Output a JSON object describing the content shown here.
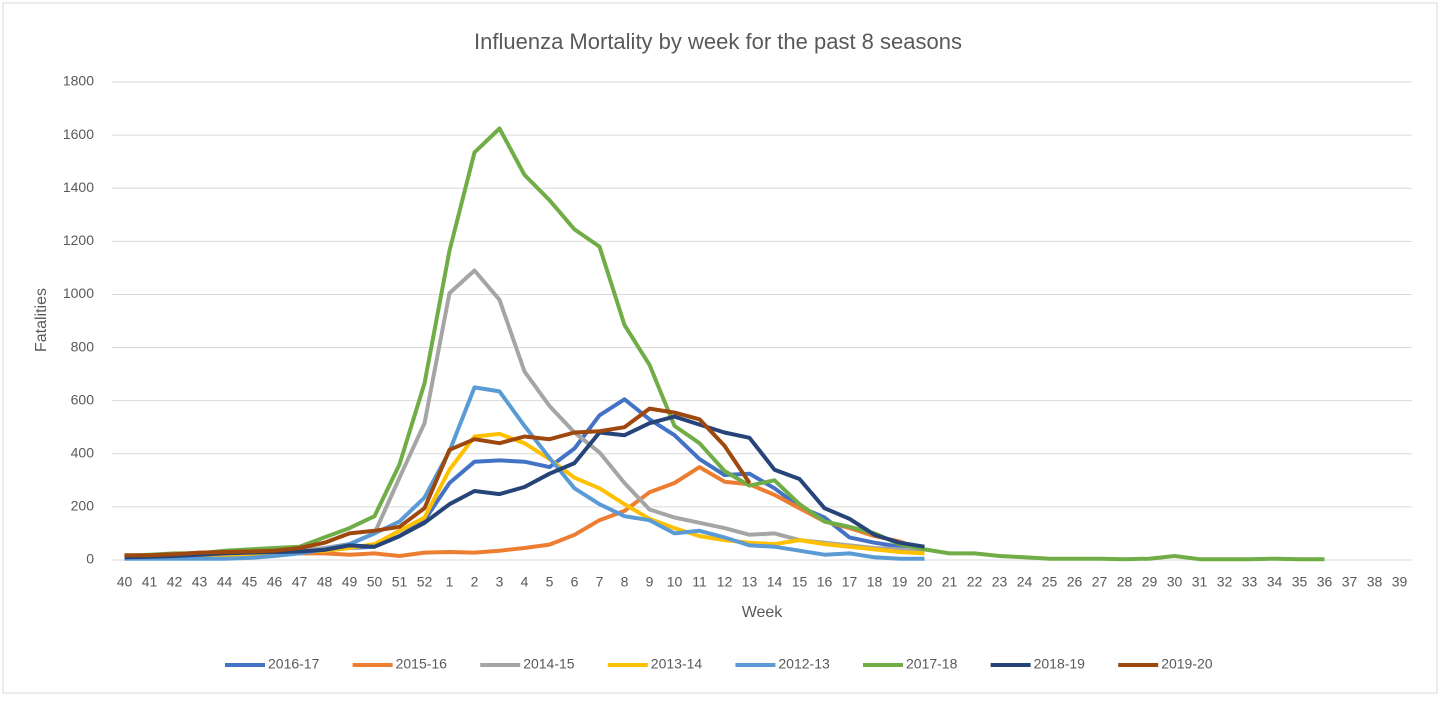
{
  "chart_data": {
    "type": "line",
    "title": "Influenza Mortality by week for the past 8 seasons",
    "x_label": "Week",
    "y_label": "Fatalities",
    "categories": [
      "40",
      "41",
      "42",
      "43",
      "44",
      "45",
      "46",
      "47",
      "48",
      "49",
      "50",
      "51",
      "52",
      "1",
      "2",
      "3",
      "4",
      "5",
      "6",
      "7",
      "8",
      "9",
      "10",
      "11",
      "12",
      "13",
      "14",
      "15",
      "16",
      "17",
      "18",
      "19",
      "20",
      "21",
      "22",
      "23",
      "24",
      "25",
      "26",
      "27",
      "28",
      "29",
      "30",
      "31",
      "32",
      "33",
      "34",
      "35",
      "36",
      "37",
      "38",
      "39"
    ],
    "ylim": [
      0,
      1800
    ],
    "yticks": [
      0,
      200,
      400,
      600,
      800,
      1000,
      1200,
      1400,
      1600,
      1800
    ],
    "grid": true,
    "legend": "bottom",
    "series": [
      {
        "name": "2016-17",
        "color": "#4472c4",
        "values": [
          10,
          12,
          15,
          18,
          20,
          22,
          25,
          30,
          35,
          45,
          50,
          90,
          150,
          290,
          370,
          375,
          370,
          350,
          420,
          545,
          605,
          530,
          470,
          380,
          320,
          325,
          270,
          200,
          160,
          85,
          65,
          50,
          40,
          null,
          null,
          null,
          null,
          null,
          null,
          null,
          null,
          null,
          null,
          null,
          null,
          null,
          null,
          null,
          null,
          null,
          null,
          null
        ]
      },
      {
        "name": "2015-16",
        "color": "#ed7d31",
        "values": [
          10,
          12,
          15,
          18,
          20,
          22,
          20,
          25,
          25,
          20,
          25,
          15,
          28,
          30,
          28,
          35,
          45,
          58,
          95,
          150,
          185,
          255,
          290,
          350,
          295,
          285,
          245,
          195,
          145,
          120,
          90,
          70,
          35,
          null,
          null,
          null,
          null,
          null,
          null,
          null,
          null,
          null,
          null,
          null,
          null,
          null,
          null,
          null,
          null,
          null,
          null,
          null
        ]
      },
      {
        "name": "2014-15",
        "color": "#a5a5a5",
        "values": [
          10,
          12,
          15,
          18,
          20,
          25,
          30,
          35,
          45,
          60,
          100,
          310,
          515,
          1005,
          1090,
          980,
          710,
          580,
          480,
          405,
          290,
          190,
          160,
          140,
          120,
          95,
          100,
          75,
          65,
          55,
          45,
          40,
          35,
          null,
          null,
          null,
          null,
          null,
          null,
          null,
          null,
          null,
          null,
          null,
          null,
          null,
          null,
          null,
          null,
          null,
          null,
          null
        ]
      },
      {
        "name": "2013-14",
        "color": "#ffc000",
        "values": [
          10,
          12,
          15,
          18,
          20,
          22,
          25,
          30,
          35,
          45,
          60,
          110,
          160,
          340,
          465,
          475,
          440,
          380,
          310,
          270,
          210,
          155,
          120,
          90,
          75,
          65,
          60,
          75,
          60,
          50,
          40,
          30,
          25,
          null,
          null,
          null,
          null,
          null,
          null,
          null,
          null,
          null,
          null,
          null,
          null,
          null,
          null,
          null,
          null,
          null,
          null,
          null
        ]
      },
      {
        "name": "2012-13",
        "color": "#5b9bd5",
        "values": [
          5,
          5,
          5,
          5,
          5,
          8,
          15,
          25,
          40,
          60,
          100,
          145,
          235,
          410,
          650,
          635,
          505,
          385,
          270,
          210,
          165,
          150,
          100,
          110,
          85,
          55,
          50,
          35,
          20,
          25,
          10,
          5,
          5,
          null,
          null,
          null,
          null,
          null,
          null,
          null,
          null,
          null,
          null,
          null,
          null,
          null,
          null,
          null,
          null,
          null,
          null,
          null
        ]
      },
      {
        "name": "2017-18",
        "color": "#70ad47",
        "values": [
          15,
          20,
          25,
          25,
          35,
          40,
          45,
          50,
          85,
          120,
          165,
          360,
          665,
          1165,
          1535,
          1625,
          1450,
          1355,
          1245,
          1180,
          885,
          735,
          505,
          440,
          335,
          280,
          300,
          210,
          145,
          125,
          100,
          60,
          40,
          25,
          25,
          15,
          10,
          5,
          5,
          5,
          3,
          5,
          15,
          3,
          3,
          3,
          5,
          3,
          3,
          null,
          null,
          null
        ]
      },
      {
        "name": "2018-19",
        "color": "#264478",
        "values": [
          10,
          12,
          15,
          20,
          25,
          28,
          30,
          32,
          38,
          55,
          50,
          90,
          140,
          210,
          260,
          248,
          275,
          325,
          365,
          480,
          470,
          515,
          540,
          510,
          480,
          460,
          340,
          305,
          195,
          155,
          95,
          65,
          50,
          null,
          null,
          null,
          null,
          null,
          null,
          null,
          null,
          null,
          null,
          null,
          null,
          null,
          null,
          null,
          null,
          null,
          null,
          null
        ]
      },
      {
        "name": "2019-20",
        "color": "#9e480e",
        "values": [
          18,
          18,
          22,
          28,
          30,
          32,
          35,
          45,
          65,
          100,
          110,
          125,
          195,
          415,
          455,
          440,
          465,
          455,
          480,
          485,
          500,
          570,
          555,
          530,
          430,
          290,
          null,
          null,
          null,
          null,
          null,
          null,
          null,
          null,
          null,
          null,
          null,
          null,
          null,
          null,
          null,
          null,
          null,
          null,
          null,
          null,
          null,
          null,
          null,
          null,
          null,
          null
        ]
      }
    ]
  }
}
